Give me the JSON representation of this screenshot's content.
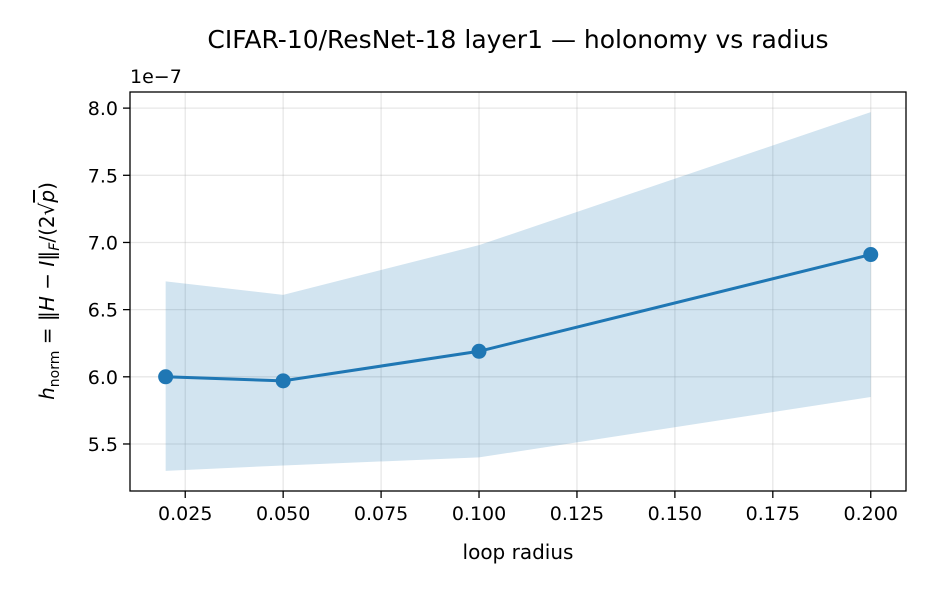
{
  "chart_data": {
    "type": "line",
    "title": "CIFAR-10/ResNet-18 layer1 — holonomy vs radius",
    "xlabel": "loop radius",
    "ylabel": "h_norm = ‖H − I‖_F/(2√p)",
    "ylabel_parts": {
      "h": "h",
      "sub": "norm",
      "eq": " = ‖",
      "H": "H",
      "minus": " − ",
      "I": "I",
      "norm_close": "‖",
      "F": "F",
      "div": "/(2",
      "sqrt": "√",
      "p": "p",
      "close": ")"
    },
    "offset_label": "1e−7",
    "x": [
      0.02,
      0.05,
      0.1,
      0.2
    ],
    "series": [
      {
        "values": [
          6.0,
          5.97,
          6.19,
          6.91
        ],
        "lower": [
          5.3,
          5.34,
          5.4,
          5.85
        ],
        "upper": [
          6.71,
          6.61,
          6.98,
          7.97
        ],
        "color": "#1f77b4",
        "band_color": "#1f77b4"
      }
    ],
    "xlim": [
      0.0109,
      0.209
    ],
    "ylim": [
      5.15,
      8.12
    ],
    "xticks": [
      0.025,
      0.05,
      0.075,
      0.1,
      0.125,
      0.15,
      0.175,
      0.2
    ],
    "xtick_labels": [
      "0.025",
      "0.050",
      "0.075",
      "0.100",
      "0.125",
      "0.150",
      "0.175",
      "0.200"
    ],
    "yticks": [
      5.5,
      6.0,
      6.5,
      7.0,
      7.5,
      8.0
    ],
    "ytick_labels": [
      "5.5",
      "6.0",
      "6.5",
      "7.0",
      "7.5",
      "8.0"
    ],
    "grid": true
  }
}
